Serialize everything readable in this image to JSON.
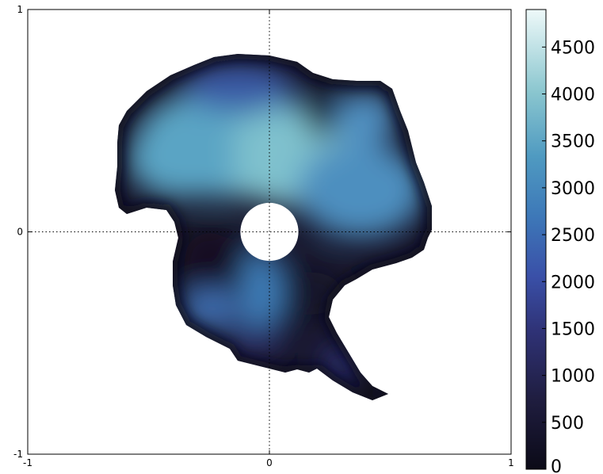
{
  "chart_data": {
    "type": "heatmap",
    "title": "",
    "xlabel": "",
    "ylabel": "",
    "xlim": [
      -1,
      1
    ],
    "ylim": [
      -1,
      1
    ],
    "x_ticks": [
      "-1",
      "0",
      "1"
    ],
    "y_ticks": [
      "-1",
      "0",
      "1"
    ],
    "grid": "dotted lines at x=0 and y=0",
    "colorbar": {
      "range": [
        0,
        4900
      ],
      "ticks": [
        0,
        500,
        1000,
        1500,
        2000,
        2500,
        3000,
        3500,
        4000,
        4500
      ],
      "tick_labels": [
        "0",
        "500",
        "1000",
        "1500",
        "2000",
        "2500",
        "3000",
        "3500",
        "4000",
        "4500"
      ],
      "colors": [
        "#0b0a17",
        "#2b2a5e",
        "#3a4aa0",
        "#3e7ab8",
        "#57a6c4",
        "#a9d9da",
        "#eef9f9"
      ]
    },
    "masked_center": {
      "shape": "circle",
      "center": [
        0,
        0
      ],
      "radius": 0.12
    },
    "region_summary": [
      {
        "region": "upper-center (around 0.1, 0.25)",
        "value": 3800
      },
      {
        "region": "upper-left (around -0.3, 0.45)",
        "value": 3400
      },
      {
        "region": "upper-right (around 0.35, 0.1)",
        "value": 3200
      },
      {
        "region": "top notch (around 0.2, 0.55)",
        "value": 300
      },
      {
        "region": "left lobe (around -0.35, -0.1)",
        "value": 200
      },
      {
        "region": "lower-center (around 0.15, -0.3)",
        "value": 250
      },
      {
        "region": "lower-left (around -0.3, -0.35)",
        "value": 2200
      },
      {
        "region": "tail (around 0.3, -0.6)",
        "value": 1200
      }
    ]
  }
}
